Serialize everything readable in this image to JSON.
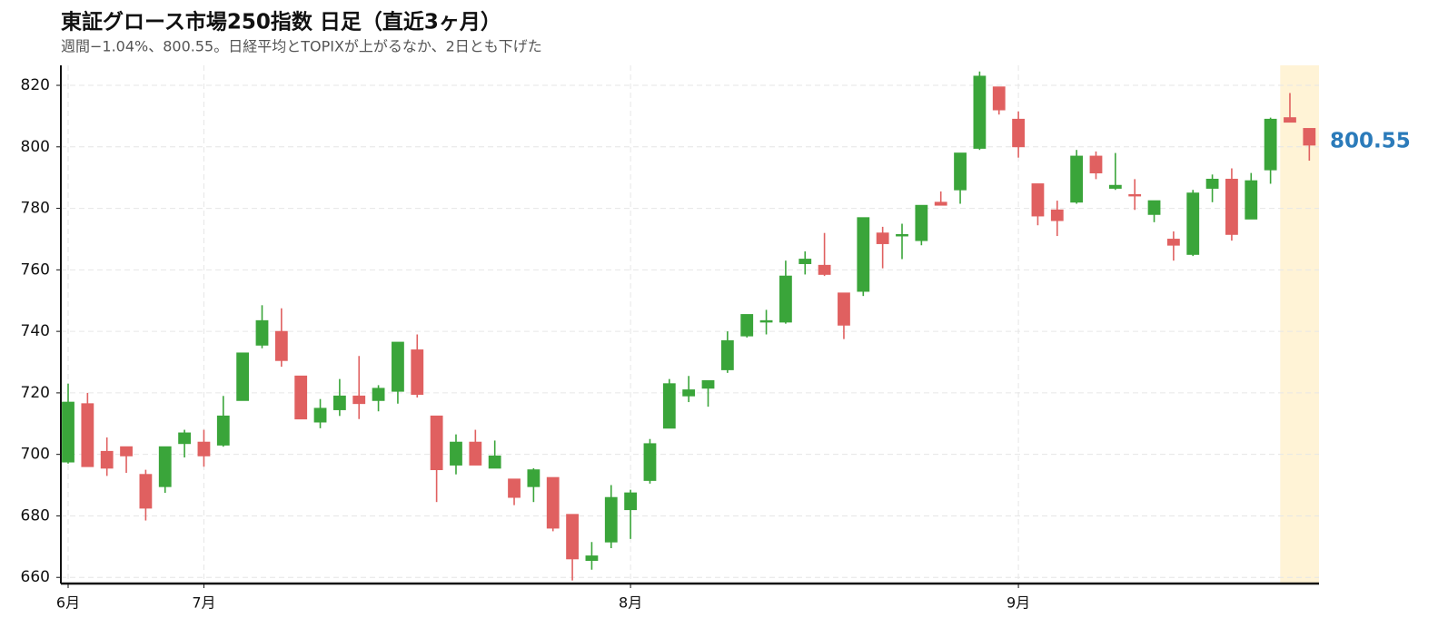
{
  "chart_data": {
    "type": "candlestick",
    "title": "東証グロース市場250指数 日足（直近3ヶ月）",
    "subtitle": "週間−1.04%、800.55。日経平均とTOPIXが上がるなか、2日とも下げた",
    "categories": [
      "6月",
      null,
      null,
      null,
      null,
      null,
      null,
      "7月",
      null,
      null,
      null,
      null,
      null,
      null,
      null,
      null,
      null,
      null,
      null,
      null,
      null,
      null,
      null,
      null,
      null,
      null,
      null,
      null,
      null,
      "8月",
      null,
      null,
      null,
      null,
      null,
      null,
      null,
      null,
      null,
      null,
      null,
      null,
      null,
      null,
      null,
      null,
      null,
      null,
      null,
      "9月",
      null,
      null,
      null,
      null,
      null,
      null,
      null,
      null,
      null,
      null,
      null,
      null,
      null,
      null,
      null
    ],
    "open": [
      697.5,
      716.5,
      701,
      702.5,
      693.5,
      689.5,
      703.5,
      704,
      703,
      717.5,
      735.5,
      740,
      725.5,
      710.5,
      714.5,
      719,
      717.5,
      720.5,
      734,
      712.5,
      696.5,
      704,
      695.5,
      692,
      689.5,
      692.5,
      680.5,
      665.5,
      671.5,
      682,
      691.5,
      708.5,
      719,
      721.5,
      727.5,
      738.5,
      743,
      743,
      762,
      761.5,
      752.5,
      753,
      772,
      771,
      769.5,
      782,
      786,
      799.5,
      819.5,
      809,
      788,
      779.5,
      782,
      797,
      786.5,
      784.5,
      778,
      770,
      765,
      786.5,
      789.5,
      776.5,
      792.5,
      809.5,
      806
    ],
    "high": [
      723,
      720,
      705.5,
      702.5,
      695,
      702.5,
      708,
      708,
      719,
      733,
      748.5,
      747.5,
      725.5,
      718,
      724.5,
      732,
      722.5,
      736.5,
      739,
      712.5,
      706.5,
      708,
      704.5,
      692,
      695.5,
      692.5,
      680.5,
      671.5,
      690,
      688.5,
      705,
      724.5,
      725.5,
      724,
      740,
      745.5,
      747,
      763,
      766,
      772,
      752.5,
      777,
      774,
      775,
      781,
      785.5,
      798,
      824.5,
      819.5,
      811.5,
      788,
      782.5,
      799,
      798.5,
      798,
      789.5,
      782.5,
      772.5,
      786,
      791,
      793,
      791.5,
      809.5,
      817.5,
      806
    ],
    "low": [
      697,
      696,
      693,
      694,
      678.5,
      687.5,
      699,
      696,
      702.5,
      717.5,
      734.5,
      728.5,
      711.5,
      708.5,
      712.5,
      711.5,
      714,
      716.5,
      718.5,
      684.5,
      693.5,
      696.5,
      695.5,
      683.5,
      684.5,
      675,
      659,
      662.5,
      669.5,
      672.5,
      690.5,
      708.5,
      717,
      715.5,
      726.5,
      738,
      739,
      742.5,
      758.5,
      758,
      737.5,
      751.5,
      760.5,
      763.5,
      768,
      781,
      781.5,
      799,
      810.5,
      796.5,
      774.5,
      771,
      781.5,
      789.5,
      786,
      779.5,
      775.5,
      763,
      764.5,
      782,
      769.5,
      776.5,
      788,
      808,
      795.5
    ],
    "close": [
      717,
      696,
      695.5,
      699.5,
      682.5,
      702.5,
      707,
      699.5,
      712.5,
      733,
      743.5,
      730.5,
      711.5,
      715,
      719,
      716.5,
      721.5,
      736.5,
      719.5,
      695,
      704,
      696.5,
      699.5,
      686,
      695,
      676,
      666,
      667,
      686,
      687.5,
      703.5,
      723,
      721,
      724,
      737,
      745.5,
      743.5,
      758,
      763.5,
      758.5,
      742,
      777,
      768.5,
      771.5,
      781,
      781,
      798,
      823,
      812,
      800,
      777.5,
      776,
      797,
      791.5,
      787.5,
      784,
      782.5,
      768,
      785,
      789.5,
      771.5,
      789,
      809,
      808,
      800.55
    ],
    "up_color": "#3aa53a",
    "down_color": "#e06060",
    "label_color": "#2b7bba",
    "highlight": {
      "start": 63,
      "color": "#fff3d6"
    },
    "ylim": [
      658,
      826.5
    ],
    "yticks": [
      660,
      680,
      700,
      720,
      740,
      760,
      780,
      800,
      820
    ],
    "grid": true
  }
}
